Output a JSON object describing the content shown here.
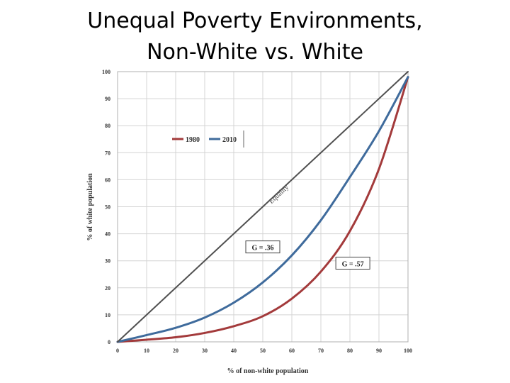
{
  "slide": {
    "title_line1": "Unequal Poverty Environments,",
    "title_line2": "Non-White vs. White"
  },
  "chart_data": {
    "type": "line",
    "xlabel": "% of non-white population",
    "ylabel": "% of white population",
    "xlim": [
      0,
      100
    ],
    "ylim": [
      0,
      100
    ],
    "xticks": [
      0,
      10,
      20,
      30,
      40,
      50,
      60,
      70,
      80,
      90,
      100
    ],
    "yticks": [
      0,
      10,
      20,
      30,
      40,
      50,
      60,
      70,
      80,
      90,
      100
    ],
    "grid": true,
    "legend": {
      "placement": "upper-left",
      "entries": [
        "1980",
        "2010"
      ]
    },
    "series": [
      {
        "name": "1980",
        "color": "#a33a3b",
        "x": [
          0,
          10,
          20,
          30,
          40,
          50,
          60,
          70,
          80,
          90,
          100
        ],
        "y": [
          0,
          0.8,
          1.7,
          3.3,
          5.8,
          9.5,
          16,
          26,
          41,
          64,
          98
        ]
      },
      {
        "name": "2010",
        "color": "#3f6b9c",
        "x": [
          0,
          10,
          20,
          30,
          40,
          50,
          60,
          70,
          80,
          90,
          100
        ],
        "y": [
          0,
          2.5,
          5.2,
          9,
          14.5,
          22,
          32,
          45,
          61,
          78,
          98
        ]
      },
      {
        "name": "Equality",
        "color": "#505050",
        "x": [
          0,
          100
        ],
        "y": [
          0,
          100
        ]
      }
    ],
    "annotations": [
      {
        "text": "Equality",
        "x": 53,
        "y": 51
      },
      {
        "text": "G = .36",
        "x": 50,
        "y": 35
      },
      {
        "text": "G = .57",
        "x": 81,
        "y": 29
      }
    ]
  }
}
